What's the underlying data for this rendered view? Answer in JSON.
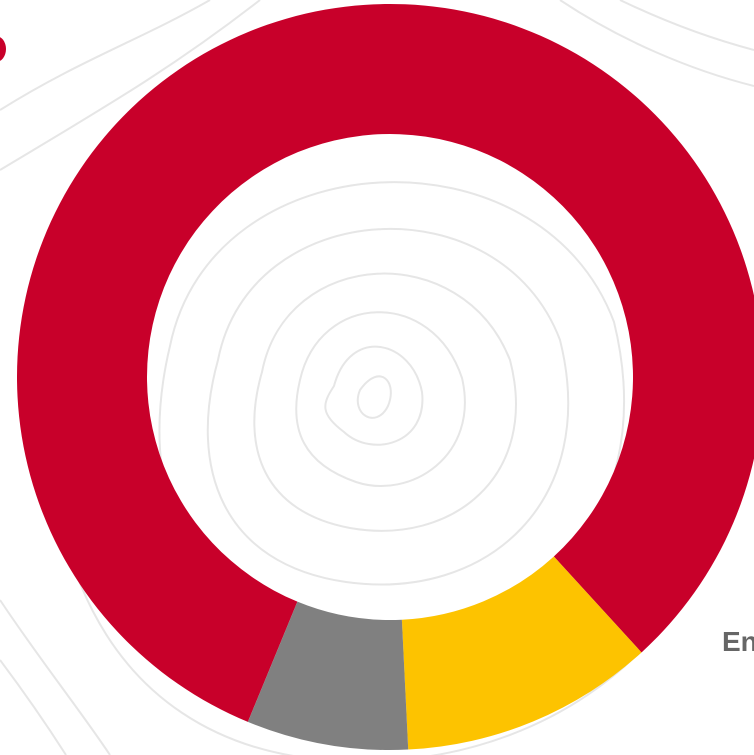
{
  "chart_data": {
    "type": "pie",
    "variant": "donut",
    "title": "",
    "legend": "none",
    "slices": [
      {
        "label": "",
        "value": 82,
        "color": "#C8002A"
      },
      {
        "label": "",
        "value": 11,
        "color": "#FDC300"
      },
      {
        "label": "",
        "value": 7,
        "color": "#808080"
      }
    ],
    "annotations": [
      {
        "text": "En"
      }
    ]
  },
  "colors": {
    "contour_lines": "#e6e6e6",
    "label_text": "#666666"
  }
}
